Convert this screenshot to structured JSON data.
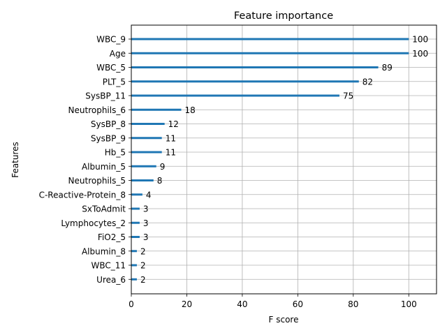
{
  "chart_data": {
    "type": "bar",
    "orientation": "horizontal",
    "title": "Feature importance",
    "xlabel": "F score",
    "ylabel": "Features",
    "xlim": [
      0,
      110
    ],
    "xticks": [
      0,
      20,
      40,
      60,
      80,
      100
    ],
    "grid": true,
    "categories": [
      "WBC_9",
      "Age",
      "WBC_5",
      "PLT_5",
      "SysBP_11",
      "Neutrophils_6",
      "SysBP_8",
      "SysBP_9",
      "Hb_5",
      "Albumin_5",
      "Neutrophils_5",
      "C-Reactive-Protein_8",
      "SxToAdmit",
      "Lymphocytes_2",
      "FiO2_5",
      "Albumin_8",
      "WBC_11",
      "Urea_6"
    ],
    "values": [
      100,
      100,
      89,
      82,
      75,
      18,
      12,
      11,
      11,
      9,
      8,
      4,
      3,
      3,
      3,
      2,
      2,
      2
    ],
    "bar_color": "#1f77b4"
  }
}
